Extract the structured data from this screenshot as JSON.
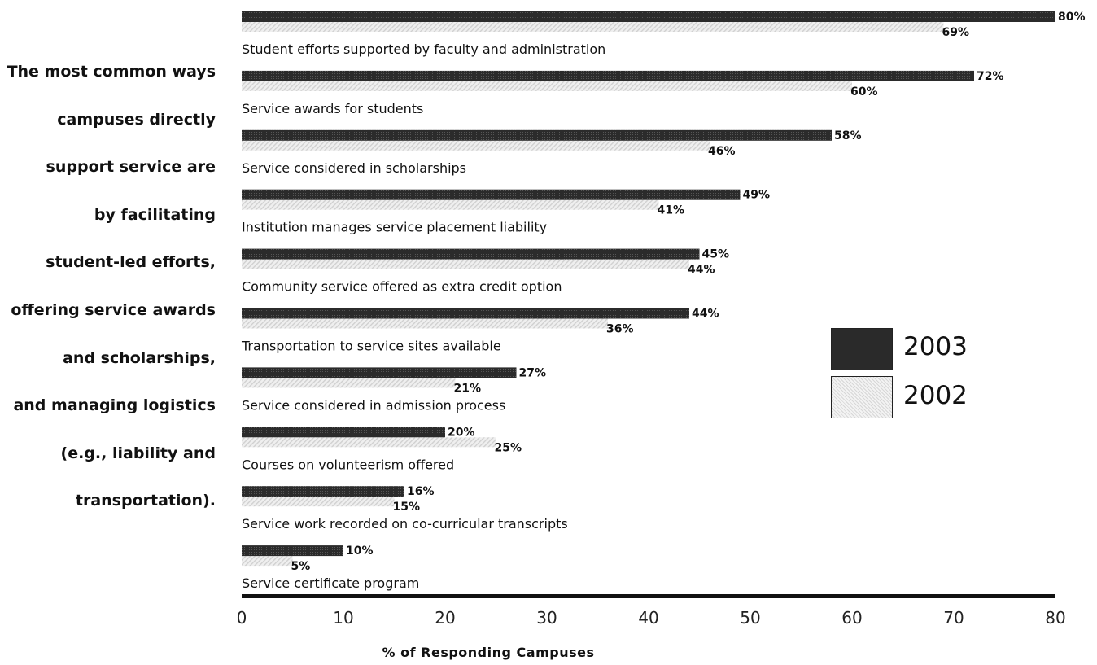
{
  "caption_lines": [
    "The most common ways",
    "campuses directly",
    "support service are",
    "by facilitating",
    "student-led efforts,",
    "offering service awards",
    "and scholarships,",
    "and managing logistics",
    "(e.g., liability and",
    "transportation)."
  ],
  "legend": {
    "y2003": "2003",
    "y2002": "2002"
  },
  "chart_data": {
    "type": "bar",
    "orientation": "horizontal",
    "categories": [
      "Student efforts supported by faculty and administration",
      "Service awards for students",
      "Service considered in scholarships",
      "Institution manages service placement liability",
      "Community service offered as extra credit option",
      "Transportation to service sites available",
      "Service considered in admission process",
      "Courses on volunteerism offered",
      "Service work recorded on co-curricular transcripts",
      "Service certificate program"
    ],
    "series": [
      {
        "name": "2003",
        "values": [
          80,
          72,
          58,
          49,
          45,
          44,
          27,
          20,
          16,
          10
        ],
        "color": "#2a2a2a"
      },
      {
        "name": "2002",
        "values": [
          69,
          60,
          46,
          41,
          44,
          36,
          21,
          25,
          15,
          5
        ],
        "color": "#dcdcdc"
      }
    ],
    "value_labels": {
      "2003": [
        "80%",
        "72%",
        "58%",
        "49%",
        "45%",
        "44%",
        "27%",
        "20%",
        "16%",
        "10%"
      ],
      "2002": [
        "69%",
        "60%",
        "46%",
        "41%",
        "44%",
        "36%",
        "21%",
        "25%",
        "15%",
        "5%"
      ]
    },
    "xlim": [
      0,
      80
    ],
    "xticks": [
      "0",
      "10",
      "20",
      "30",
      "40",
      "50",
      "60",
      "70",
      "80"
    ],
    "xlabel": "% of Responding Campuses",
    "ylabel": "",
    "title": "",
    "legend_position": "right"
  }
}
